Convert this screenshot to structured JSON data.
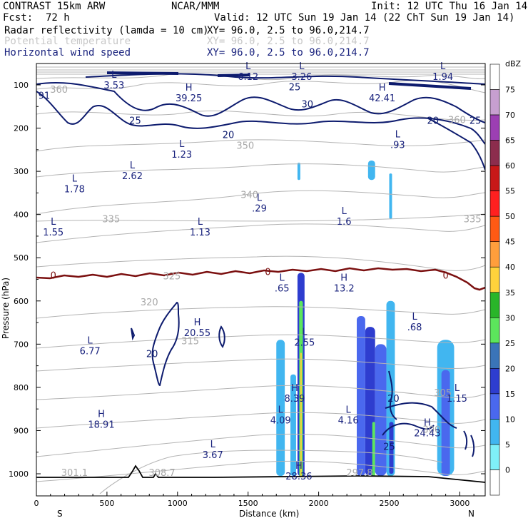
{
  "header": {
    "title": "CONTRAST 15km ARW",
    "fcst_label": "Fcst:",
    "fcst_value": "72 h",
    "source": "NCAR/MMM",
    "init": "Init: 12 UTC Thu 16 Jan 14",
    "valid": "Valid: 12 UTC Sun 19 Jan 14 (22 ChT Sun 19 Jan 14)",
    "fields": [
      {
        "name": "Radar reflectivity (lamda = 10 cm)",
        "xy": "XY=  96.0,  2.5 to  96.0,214.7",
        "color": "#000000"
      },
      {
        "name": "Potential temperature",
        "xy": "XY=  96.0,  2.5 to  96.0,214.7",
        "color": "#c8c8c8"
      },
      {
        "name": "Horizontal wind speed",
        "xy": "XY=  96.0,  2.5 to  96.0,214.7",
        "color": "#1a237e"
      }
    ]
  },
  "colors": {
    "wind": "#0d1b6e",
    "theta": "#b4b4b4",
    "zero_line": "#7b1010",
    "ground": "#000000"
  },
  "chart_data": {
    "type": "cross-section",
    "xlabel": "Distance (km)",
    "ylabel": "Pressure (hPa)",
    "xlim": [
      0,
      3180
    ],
    "ylim": [
      1050,
      60
    ],
    "x_ticks": [
      "0",
      "500",
      "1000",
      "1500",
      "2000",
      "2500",
      "3000"
    ],
    "x_tick_values": [
      0,
      500,
      1000,
      1500,
      2000,
      2500,
      3000
    ],
    "y_ticks": [
      "100",
      "200",
      "300",
      "400",
      "500",
      "600",
      "700",
      "800",
      "900",
      "1000"
    ],
    "y_tick_values": [
      100,
      200,
      300,
      400,
      500,
      600,
      700,
      800,
      900,
      1000
    ],
    "left_end_label": "S",
    "right_end_label": "N",
    "colorbar": {
      "unit": "dBZ",
      "levels": [
        "75",
        "70",
        "65",
        "60",
        "55",
        "50",
        "45",
        "40",
        "35",
        "30",
        "25",
        "20",
        "15",
        "10",
        "5",
        "0"
      ],
      "colors": [
        "#ffffff",
        "#c79fd0",
        "#9c3fb3",
        "#8c2d4d",
        "#c81818",
        "#ff2020",
        "#ff5a14",
        "#ff9e3c",
        "#ffd23c",
        "#29b529",
        "#5ce65c",
        "#3a74b8",
        "#2e3dcf",
        "#4a68ee",
        "#41b6f0",
        "#7ff0f8",
        "#ffffff"
      ]
    },
    "theta_contours": [
      {
        "label": "301.1",
        "x": 270,
        "p": 1005
      },
      {
        "label": "308.7",
        "x": 890,
        "p": 1005
      },
      {
        "label": "297.8",
        "x": 2290,
        "p": 1005
      },
      {
        "label": "300",
        "x": 2800,
        "p": 905
      },
      {
        "label": "305",
        "x": 2880,
        "p": 820
      },
      {
        "label": "315",
        "x": 1090,
        "p": 700
      },
      {
        "label": "320",
        "x": 800,
        "p": 610
      },
      {
        "label": "325",
        "x": 960,
        "p": 550
      },
      {
        "label": "335",
        "x": 530,
        "p": 418
      },
      {
        "label": "335",
        "x": 3090,
        "p": 418
      },
      {
        "label": "340",
        "x": 1510,
        "p": 362
      },
      {
        "label": "350",
        "x": 1480,
        "p": 248
      },
      {
        "label": "360",
        "x": 160,
        "p": 118
      },
      {
        "label": "360",
        "x": 2980,
        "p": 188
      }
    ],
    "wind_extrema": [
      {
        "type": "L",
        "value": "3.53",
        "x": 550,
        "p": 105
      },
      {
        "type": "L",
        "value": "6.12",
        "x": 1500,
        "p": 85
      },
      {
        "type": "L",
        "value": "3.26",
        "x": 1880,
        "p": 85
      },
      {
        "type": "L",
        "value": "1.94",
        "x": 2880,
        "p": 85
      },
      {
        "type": "H",
        "value": "39.25",
        "x": 1080,
        "p": 135
      },
      {
        "type": "H",
        "value": "42.41",
        "x": 2450,
        "p": 135
      },
      {
        "type": "L",
        "value": "1.23",
        "x": 1030,
        "p": 265
      },
      {
        "type": "L",
        "value": ".93",
        "x": 2560,
        "p": 243
      },
      {
        "type": "L",
        "value": "2.62",
        "x": 680,
        "p": 315
      },
      {
        "type": "L",
        "value": "1.78",
        "x": 270,
        "p": 345
      },
      {
        "type": "L",
        "value": ".29",
        "x": 1580,
        "p": 390
      },
      {
        "type": "L",
        "value": "1.6",
        "x": 2180,
        "p": 420
      },
      {
        "type": "L",
        "value": "1.55",
        "x": 120,
        "p": 445
      },
      {
        "type": "L",
        "value": "1.13",
        "x": 1160,
        "p": 445
      },
      {
        "type": "L",
        "value": ".65",
        "x": 1740,
        "p": 575
      },
      {
        "type": "H",
        "value": "13.2",
        "x": 2180,
        "p": 575
      },
      {
        "type": "L",
        "value": ".68",
        "x": 2680,
        "p": 665
      },
      {
        "type": "H",
        "value": "20.55",
        "x": 1140,
        "p": 678
      },
      {
        "type": "L",
        "value": "2.55",
        "x": 1900,
        "p": 700
      },
      {
        "type": "L",
        "value": "6.77",
        "x": 380,
        "p": 720
      },
      {
        "type": "H",
        "value": "8.39",
        "x": 1830,
        "p": 830
      },
      {
        "type": "L",
        "value": "1.15",
        "x": 2980,
        "p": 830
      },
      {
        "type": "L",
        "value": "4.09",
        "x": 1730,
        "p": 880
      },
      {
        "type": "L",
        "value": "4.16",
        "x": 2210,
        "p": 880
      },
      {
        "type": "H",
        "value": "18.91",
        "x": 460,
        "p": 890
      },
      {
        "type": "H",
        "value": "24.43",
        "x": 2770,
        "p": 910
      },
      {
        "type": "L",
        "value": "3.67",
        "x": 1250,
        "p": 960
      },
      {
        "type": "H",
        "value": "28.36",
        "x": 1860,
        "p": 1010
      }
    ],
    "wind_contour_labels": [
      {
        "label": "91",
        "x": 55,
        "p": 132
      },
      {
        "label": "25",
        "x": 1830,
        "p": 112
      },
      {
        "label": "30",
        "x": 1920,
        "p": 152
      },
      {
        "label": "25",
        "x": 700,
        "p": 190
      },
      {
        "label": "20",
        "x": 1360,
        "p": 223
      },
      {
        "label": "20",
        "x": 2810,
        "p": 190
      },
      {
        "label": "25",
        "x": 3110,
        "p": 190
      },
      {
        "label": "20",
        "x": 820,
        "p": 730
      },
      {
        "label": "20",
        "x": 2530,
        "p": 833
      },
      {
        "label": "25",
        "x": 2500,
        "p": 945
      }
    ],
    "zero_isotherm_labels": [
      {
        "label": "0",
        "x": 120,
        "p": 548
      },
      {
        "label": "0",
        "x": 1640,
        "p": 540
      },
      {
        "label": "0",
        "x": 2900,
        "p": 548
      }
    ],
    "reflectivity_cells": [
      {
        "x0": 1700,
        "x1": 1760,
        "p0": 690,
        "p1": 1005,
        "dbz": 10
      },
      {
        "x0": 1800,
        "x1": 1840,
        "p0": 770,
        "p1": 1005,
        "dbz": 10
      },
      {
        "x0": 1850,
        "x1": 1900,
        "p0": 535,
        "p1": 1005,
        "dbz": 20
      },
      {
        "x0": 1862,
        "x1": 1888,
        "p0": 600,
        "p1": 1005,
        "dbz": 30
      },
      {
        "x0": 1870,
        "x1": 1880,
        "p0": 720,
        "p1": 1005,
        "dbz": 40
      },
      {
        "x0": 2270,
        "x1": 2330,
        "p0": 635,
        "p1": 1005,
        "dbz": 15
      },
      {
        "x0": 2330,
        "x1": 2400,
        "p0": 660,
        "p1": 1005,
        "dbz": 20
      },
      {
        "x0": 2380,
        "x1": 2400,
        "p0": 880,
        "p1": 1005,
        "dbz": 30
      },
      {
        "x0": 2400,
        "x1": 2480,
        "p0": 700,
        "p1": 1005,
        "dbz": 15
      },
      {
        "x0": 2480,
        "x1": 2540,
        "p0": 600,
        "p1": 1005,
        "dbz": 10
      },
      {
        "x0": 2500,
        "x1": 2530,
        "p0": 880,
        "p1": 1000,
        "dbz": 20
      },
      {
        "x0": 2840,
        "x1": 2960,
        "p0": 690,
        "p1": 1005,
        "dbz": 10
      },
      {
        "x0": 2870,
        "x1": 2930,
        "p0": 760,
        "p1": 1005,
        "dbz": 15
      },
      {
        "x0": 1850,
        "x1": 1870,
        "p0": 280,
        "p1": 320,
        "dbz": 10
      },
      {
        "x0": 2350,
        "x1": 2400,
        "p0": 275,
        "p1": 320,
        "dbz": 10
      },
      {
        "x0": 2500,
        "x1": 2520,
        "p0": 305,
        "p1": 410,
        "dbz": 10
      }
    ]
  }
}
